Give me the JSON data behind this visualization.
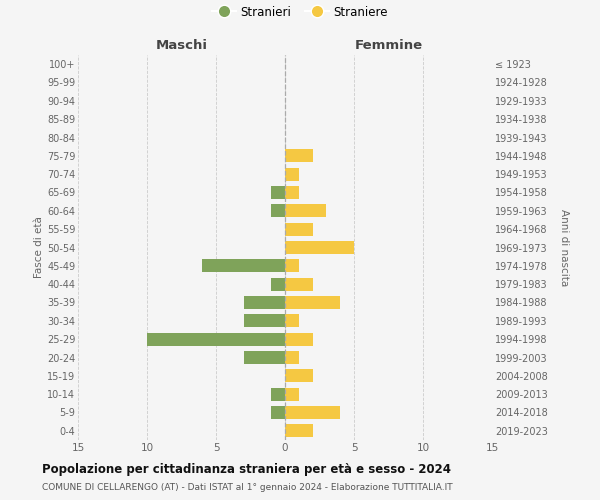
{
  "age_groups": [
    "0-4",
    "5-9",
    "10-14",
    "15-19",
    "20-24",
    "25-29",
    "30-34",
    "35-39",
    "40-44",
    "45-49",
    "50-54",
    "55-59",
    "60-64",
    "65-69",
    "70-74",
    "75-79",
    "80-84",
    "85-89",
    "90-94",
    "95-99",
    "100+"
  ],
  "birth_years": [
    "2019-2023",
    "2014-2018",
    "2009-2013",
    "2004-2008",
    "1999-2003",
    "1994-1998",
    "1989-1993",
    "1984-1988",
    "1979-1983",
    "1974-1978",
    "1969-1973",
    "1964-1968",
    "1959-1963",
    "1954-1958",
    "1949-1953",
    "1944-1948",
    "1939-1943",
    "1934-1938",
    "1929-1933",
    "1924-1928",
    "≤ 1923"
  ],
  "maschi": [
    0,
    1,
    1,
    0,
    3,
    10,
    3,
    3,
    1,
    6,
    0,
    0,
    1,
    1,
    0,
    0,
    0,
    0,
    0,
    0,
    0
  ],
  "femmine": [
    2,
    4,
    1,
    2,
    1,
    2,
    1,
    4,
    2,
    1,
    5,
    2,
    3,
    1,
    1,
    2,
    0,
    0,
    0,
    0,
    0
  ],
  "color_maschi": "#7fa35a",
  "color_femmine": "#f5c842",
  "title": "Popolazione per cittadinanza straniera per età e sesso - 2024",
  "subtitle": "COMUNE DI CELLARENGO (AT) - Dati ISTAT al 1° gennaio 2024 - Elaborazione TUTTITALIA.IT",
  "legend_maschi": "Stranieri",
  "legend_femmine": "Straniere",
  "xlabel_left": "Maschi",
  "xlabel_right": "Femmine",
  "ylabel_left": "Fasce di età",
  "ylabel_right": "Anni di nascita",
  "xlim": 15,
  "bg_color": "#f5f5f5",
  "grid_color": "#cccccc"
}
